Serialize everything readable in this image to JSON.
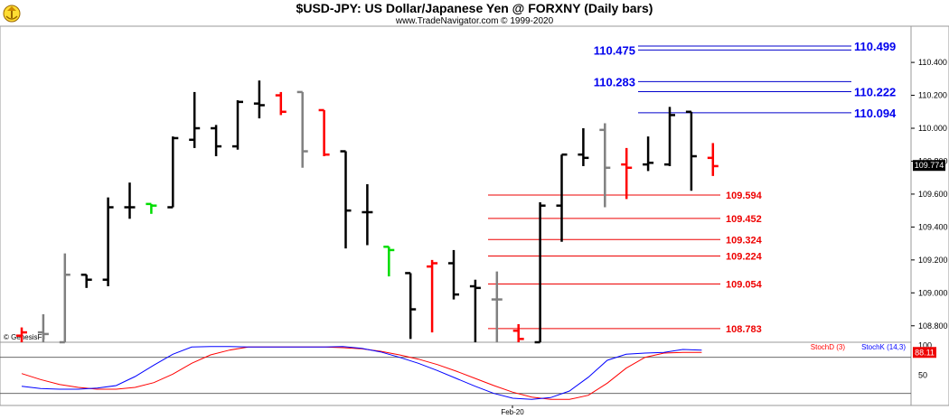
{
  "header": {
    "title": "$USD-JPY:  US Dollar/Japanese Yen @ FORXNY  (Daily bars)",
    "subtitle": "www.TradeNavigator.com © 1999-2020"
  },
  "watermark": "© GenesisFT",
  "chart_data": [
    {
      "type": "ohlc",
      "title": "$USD-JPY:  US Dollar/Japanese Yen @ FORXNY  (Daily bars)",
      "ylim": [
        108.7,
        110.62
      ],
      "y_ticks": [
        "110.400",
        "110.200",
        "110.000",
        "109.800",
        "109.600",
        "109.400",
        "109.200",
        "109.000",
        "108.800"
      ],
      "y_tick_values": [
        110.4,
        110.2,
        110.0,
        109.8,
        109.6,
        109.4,
        109.2,
        109.0,
        108.8
      ],
      "x_labels": [
        "Feb-20"
      ],
      "last_price_label": "109.774",
      "last_price": 109.774,
      "bars": [
        {
          "o": 108.74,
          "h": 108.79,
          "l": 108.7,
          "c": 108.76,
          "color": "#ff0000"
        },
        {
          "o": 108.76,
          "h": 108.87,
          "l": 108.7,
          "c": 108.75,
          "color": "#808080"
        },
        {
          "o": 108.65,
          "h": 109.24,
          "l": 108.6,
          "c": 109.11,
          "color": "#808080"
        },
        {
          "o": 109.11,
          "h": 109.11,
          "l": 109.03,
          "c": 109.08,
          "color": "#000000"
        },
        {
          "o": 109.08,
          "h": 109.58,
          "l": 109.04,
          "c": 109.52,
          "color": "#000000"
        },
        {
          "o": 109.52,
          "h": 109.67,
          "l": 109.45,
          "c": 109.52,
          "color": "#000000"
        },
        {
          "o": 109.54,
          "h": 109.54,
          "l": 109.48,
          "c": 109.53,
          "color": "#00dd00"
        },
        {
          "o": 109.52,
          "h": 109.95,
          "l": 109.52,
          "c": 109.94,
          "color": "#000000"
        },
        {
          "o": 109.93,
          "h": 110.22,
          "l": 109.88,
          "c": 110.0,
          "color": "#000000"
        },
        {
          "o": 110.0,
          "h": 110.02,
          "l": 109.83,
          "c": 109.89,
          "color": "#000000"
        },
        {
          "o": 109.89,
          "h": 110.17,
          "l": 109.87,
          "c": 110.16,
          "color": "#000000"
        },
        {
          "o": 110.15,
          "h": 110.29,
          "l": 110.06,
          "c": 110.14,
          "color": "#000000"
        },
        {
          "o": 110.2,
          "h": 110.22,
          "l": 110.08,
          "c": 110.1,
          "color": "#ff0000"
        },
        {
          "o": 110.22,
          "h": 110.22,
          "l": 109.76,
          "c": 109.86,
          "color": "#808080"
        },
        {
          "o": 110.11,
          "h": 110.11,
          "l": 109.83,
          "c": 109.84,
          "color": "#ff0000"
        },
        {
          "o": 109.86,
          "h": 109.86,
          "l": 109.27,
          "c": 109.5,
          "color": "#000000"
        },
        {
          "o": 109.49,
          "h": 109.66,
          "l": 109.29,
          "c": 109.49,
          "color": "#000000"
        },
        {
          "o": 109.28,
          "h": 109.28,
          "l": 109.1,
          "c": 109.26,
          "color": "#00dd00"
        },
        {
          "o": 109.12,
          "h": 109.12,
          "l": 108.72,
          "c": 108.9,
          "color": "#000000"
        },
        {
          "o": 109.16,
          "h": 109.2,
          "l": 108.76,
          "c": 109.18,
          "color": "#ff0000"
        },
        {
          "o": 109.18,
          "h": 109.26,
          "l": 108.96,
          "c": 108.99,
          "color": "#000000"
        },
        {
          "o": 109.04,
          "h": 109.08,
          "l": 108.6,
          "c": 109.03,
          "color": "#000000"
        },
        {
          "o": 108.96,
          "h": 109.13,
          "l": 108.6,
          "c": 108.96,
          "color": "#808080"
        },
        {
          "o": 108.77,
          "h": 108.81,
          "l": 108.6,
          "c": 108.72,
          "color": "#ff0000"
        },
        {
          "o": 108.7,
          "h": 109.55,
          "l": 108.6,
          "c": 109.53,
          "color": "#000000"
        },
        {
          "o": 109.53,
          "h": 109.84,
          "l": 109.31,
          "c": 109.84,
          "color": "#000000"
        },
        {
          "o": 109.84,
          "h": 110.0,
          "l": 109.77,
          "c": 109.82,
          "color": "#000000"
        },
        {
          "o": 109.99,
          "h": 110.03,
          "l": 109.52,
          "c": 109.76,
          "color": "#808080"
        },
        {
          "o": 109.78,
          "h": 109.88,
          "l": 109.57,
          "c": 109.76,
          "color": "#ff0000"
        },
        {
          "o": 109.78,
          "h": 109.95,
          "l": 109.74,
          "c": 109.79,
          "color": "#000000"
        },
        {
          "o": 109.78,
          "h": 110.13,
          "l": 109.77,
          "c": 110.08,
          "color": "#000000"
        },
        {
          "o": 110.1,
          "h": 110.1,
          "l": 109.62,
          "c": 109.83,
          "color": "#000000"
        },
        {
          "o": 109.82,
          "h": 109.91,
          "l": 109.71,
          "c": 109.77,
          "color": "#ff0000"
        }
      ],
      "levels_blue": [
        {
          "label": "110.475",
          "value": 110.475,
          "label_side": "left"
        },
        {
          "label": "110.499",
          "value": 110.499,
          "label_side": "right"
        },
        {
          "label": "110.283",
          "value": 110.283,
          "label_side": "left"
        },
        {
          "label": "110.222",
          "value": 110.222,
          "label_side": "right"
        },
        {
          "label": "110.094",
          "value": 110.094,
          "label_side": "right"
        }
      ],
      "levels_red": [
        {
          "label": "109.594",
          "value": 109.594
        },
        {
          "label": "109.452",
          "value": 109.452
        },
        {
          "label": "109.324",
          "value": 109.324
        },
        {
          "label": "109.224",
          "value": 109.224
        },
        {
          "label": "109.054",
          "value": 109.054
        },
        {
          "label": "108.783",
          "value": 108.783
        }
      ]
    },
    {
      "type": "line",
      "legend": [
        {
          "name": "StochD (3)",
          "color": "#ff0000"
        },
        {
          "name": "StochK (14,3)",
          "color": "#0000ff"
        }
      ],
      "ylim": [
        0,
        105
      ],
      "y_ticks": [
        "100",
        "50"
      ],
      "y_tick_values": [
        100,
        50
      ],
      "last_value_label": "88.11",
      "last_value": 88.11,
      "series": [
        {
          "name": "StochD (3)",
          "color": "#ff0000",
          "values": [
            53,
            43,
            35,
            30,
            27,
            27,
            30,
            38,
            52,
            70,
            84,
            92,
            97,
            97,
            97,
            97,
            97,
            96,
            94,
            90,
            84,
            77,
            68,
            57,
            45,
            33,
            22,
            14,
            10,
            10,
            17,
            37,
            62,
            80,
            87,
            88,
            88.11
          ]
        },
        {
          "name": "StochK (14,3)",
          "color": "#0000ff",
          "values": [
            32,
            28,
            27,
            27,
            29,
            33,
            48,
            67,
            85,
            97,
            98,
            98,
            97,
            97,
            97,
            97,
            97,
            98,
            95,
            89,
            80,
            70,
            58,
            45,
            32,
            20,
            12,
            10,
            13,
            24,
            47,
            75,
            85,
            87,
            88,
            93,
            92
          ]
        }
      ]
    }
  ]
}
